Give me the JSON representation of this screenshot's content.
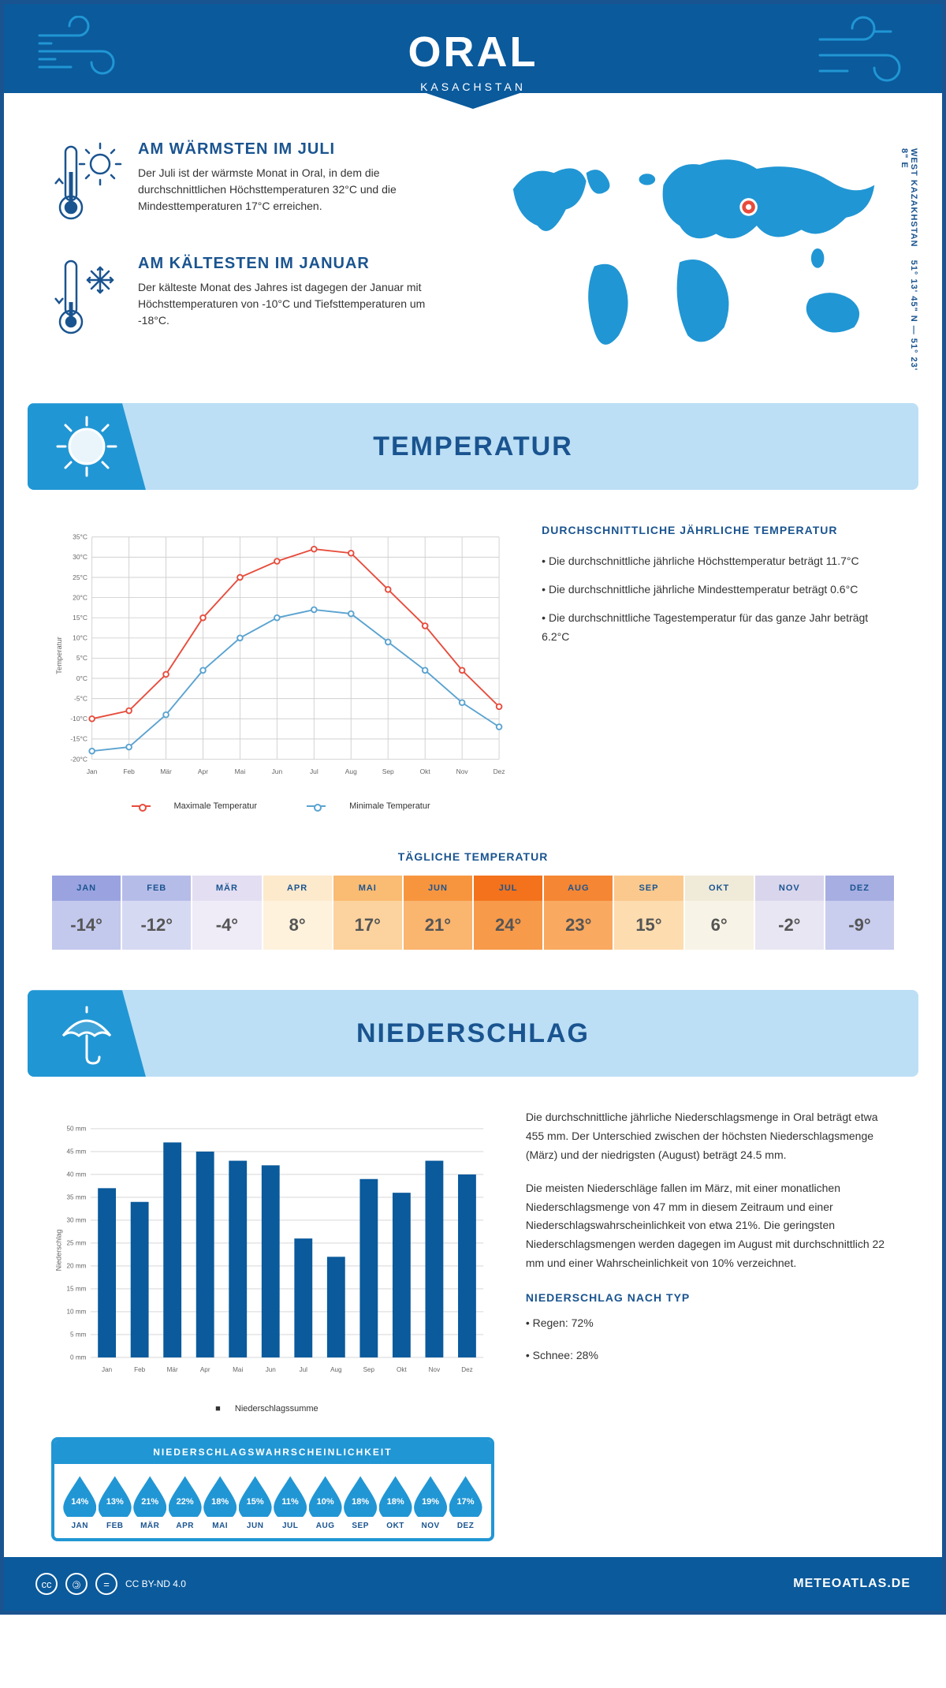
{
  "header": {
    "city": "ORAL",
    "country": "KASACHSTAN"
  },
  "coords": "51° 13' 45\" N — 51° 23' 8\" E",
  "region": "WEST KAZAKHSTAN",
  "warmest": {
    "title": "AM WÄRMSTEN IM JULI",
    "text": "Der Juli ist der wärmste Monat in Oral, in dem die durchschnittlichen Höchsttemperaturen 32°C und die Mindesttemperaturen 17°C erreichen."
  },
  "coldest": {
    "title": "AM KÄLTESTEN IM JANUAR",
    "text": "Der kälteste Monat des Jahres ist dagegen der Januar mit Höchsttemperaturen von -10°C und Tiefsttemperaturen um -18°C."
  },
  "temp_section_title": "TEMPERATUR",
  "temp_side": {
    "title": "DURCHSCHNITTLICHE JÄHRLICHE TEMPERATUR",
    "b1": "• Die durchschnittliche jährliche Höchsttemperatur beträgt 11.7°C",
    "b2": "• Die durchschnittliche jährliche Mindesttemperatur beträgt 0.6°C",
    "b3": "• Die durchschnittliche Tagestemperatur für das ganze Jahr beträgt 6.2°C"
  },
  "temp_chart": {
    "type": "line",
    "y_axis_label": "Temperatur",
    "months": [
      "Jan",
      "Feb",
      "Mär",
      "Apr",
      "Mai",
      "Jun",
      "Jul",
      "Aug",
      "Sep",
      "Okt",
      "Nov",
      "Dez"
    ],
    "ylim": [
      -20,
      35
    ],
    "ytick_step": 5,
    "max_series": {
      "label": "Maximale Temperatur",
      "color": "#e74c3c",
      "values": [
        -10,
        -8,
        1,
        15,
        25,
        29,
        32,
        31,
        22,
        13,
        2,
        -7
      ]
    },
    "min_series": {
      "label": "Minimale Temperatur",
      "color": "#5ba3d0",
      "values": [
        -18,
        -17,
        -9,
        2,
        10,
        15,
        17,
        16,
        9,
        2,
        -6,
        -12
      ]
    },
    "grid_color": "#d0d0d0",
    "background": "#ffffff",
    "line_width": 2,
    "marker": "circle",
    "marker_size": 5,
    "tick_fontsize": 9,
    "label_fontsize": 10
  },
  "daily": {
    "title": "TÄGLICHE TEMPERATUR",
    "months": [
      "JAN",
      "FEB",
      "MÄR",
      "APR",
      "MAI",
      "JUN",
      "JUL",
      "AUG",
      "SEP",
      "OKT",
      "NOV",
      "DEZ"
    ],
    "temps": [
      "-14°",
      "-12°",
      "-4°",
      "8°",
      "17°",
      "21°",
      "24°",
      "23°",
      "15°",
      "6°",
      "-2°",
      "-9°"
    ],
    "header_colors": [
      "#9aa3e0",
      "#b6bce8",
      "#e3def2",
      "#fde9cc",
      "#fabb72",
      "#f7953f",
      "#f3721b",
      "#f58634",
      "#fbc98d",
      "#f0ead8",
      "#d9d5ec",
      "#a7aee2"
    ],
    "body_colors": [
      "#c3c8ed",
      "#d6d9f2",
      "#efecf7",
      "#fef2dd",
      "#fcd39e",
      "#fab56f",
      "#f79a4a",
      "#f9a960",
      "#fddcaf",
      "#f7f3e6",
      "#e9e6f3",
      "#c9cdee"
    ]
  },
  "precip_section_title": "NIEDERSCHLAG",
  "precip_chart": {
    "type": "bar",
    "y_axis_label": "Niederschlag",
    "months": [
      "Jan",
      "Feb",
      "Mär",
      "Apr",
      "Mai",
      "Jun",
      "Jul",
      "Aug",
      "Sep",
      "Okt",
      "Nov",
      "Dez"
    ],
    "values": [
      37,
      34,
      47,
      45,
      43,
      42,
      26,
      22,
      39,
      36,
      43,
      40
    ],
    "ylim": [
      0,
      50
    ],
    "ytick_step": 5,
    "unit_suffix": " mm",
    "bar_color": "#0a5a9c",
    "grid_color": "#d0d0d0",
    "bar_width": 0.55,
    "background": "#ffffff",
    "tick_fontsize": 9,
    "label_fontsize": 10,
    "legend_label": "Niederschlagssumme"
  },
  "precip_side": {
    "p1": "Die durchschnittliche jährliche Niederschlagsmenge in Oral beträgt etwa 455 mm. Der Unterschied zwischen der höchsten Niederschlagsmenge (März) und der niedrigsten (August) beträgt 24.5 mm.",
    "p2": "Die meisten Niederschläge fallen im März, mit einer monatlichen Niederschlagsmenge von 47 mm in diesem Zeitraum und einer Niederschlagswahrscheinlichkeit von etwa 21%. Die geringsten Niederschlagsmengen werden dagegen im August mit durchschnittlich 22 mm und einer Wahrscheinlichkeit von 10% verzeichnet.",
    "type_title": "NIEDERSCHLAG NACH TYP",
    "type_rain": "• Regen: 72%",
    "type_snow": "• Schnee: 28%"
  },
  "prob": {
    "title": "NIEDERSCHLAGSWAHRSCHEINLICHKEIT",
    "months": [
      "JAN",
      "FEB",
      "MÄR",
      "APR",
      "MAI",
      "JUN",
      "JUL",
      "AUG",
      "SEP",
      "OKT",
      "NOV",
      "DEZ"
    ],
    "values": [
      "14%",
      "13%",
      "21%",
      "22%",
      "18%",
      "15%",
      "11%",
      "10%",
      "18%",
      "18%",
      "19%",
      "17%"
    ],
    "drop_color": "#2196d4"
  },
  "footer": {
    "license": "CC BY-ND 4.0",
    "brand": "METEOATLAS.DE"
  }
}
